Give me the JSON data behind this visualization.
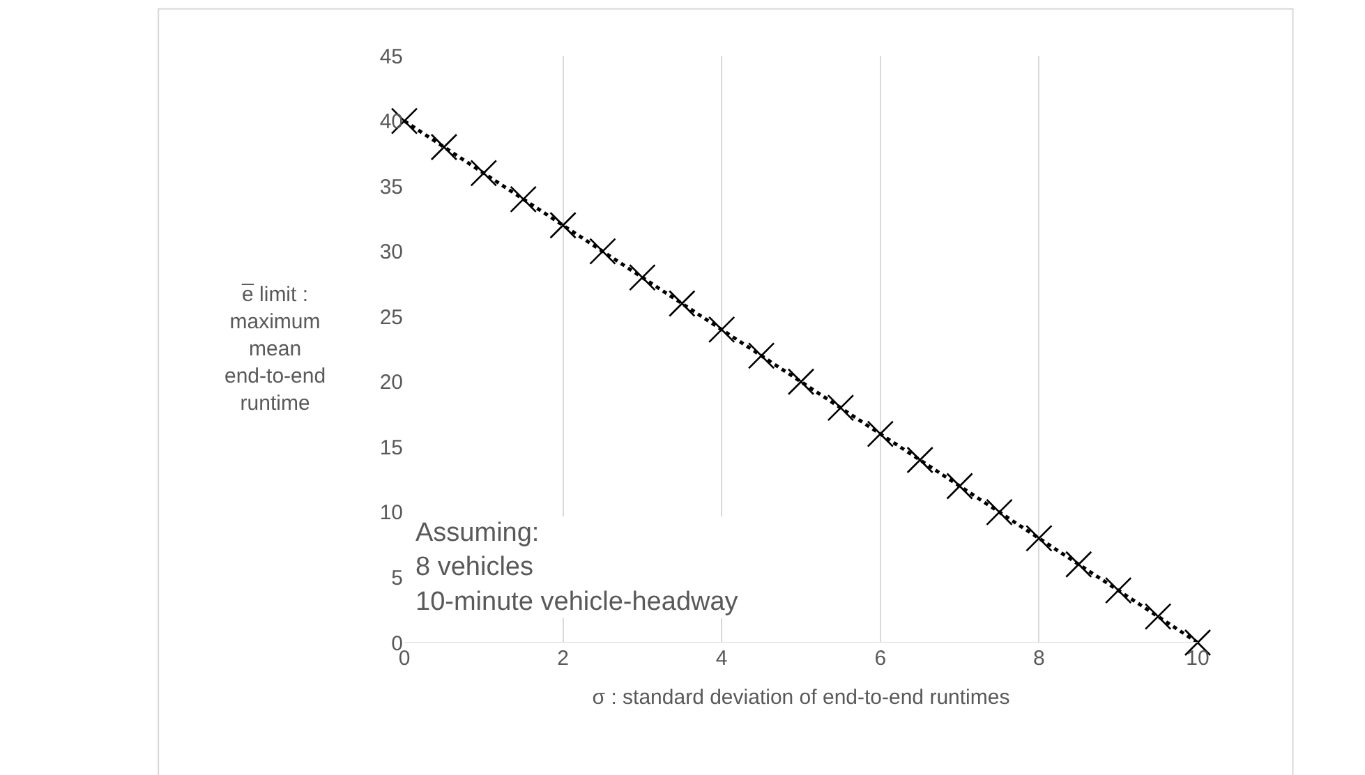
{
  "chart_data": {
    "type": "line",
    "xlabel": "σ : standard deviation of end-to-end runtimes",
    "ylabel": "e̅ limit : maximum mean end-to-end runtime",
    "x": [
      0,
      0.5,
      1,
      1.5,
      2,
      2.5,
      3,
      3.5,
      4,
      4.5,
      5,
      5.5,
      6,
      6.5,
      7,
      7.5,
      8,
      8.5,
      9,
      9.5,
      10
    ],
    "series": [
      {
        "color": "#000000",
        "values": [
          40,
          38,
          36,
          34,
          32,
          30,
          28,
          26,
          24,
          22,
          20,
          18,
          16,
          14,
          12,
          10,
          8,
          6,
          4,
          2,
          0
        ]
      }
    ],
    "xlim": [
      0,
      10
    ],
    "xticks": [
      0,
      2,
      4,
      6,
      8,
      10
    ],
    "ylim": [
      0,
      45
    ],
    "yticks": [
      0,
      5,
      10,
      15,
      20,
      25,
      30,
      35,
      40,
      45
    ],
    "grid": "x",
    "marker": "cross",
    "line_style": "dotted",
    "annotations": [
      "Assuming:\n8 vehicles\n10-minute vehicle-headway"
    ]
  }
}
